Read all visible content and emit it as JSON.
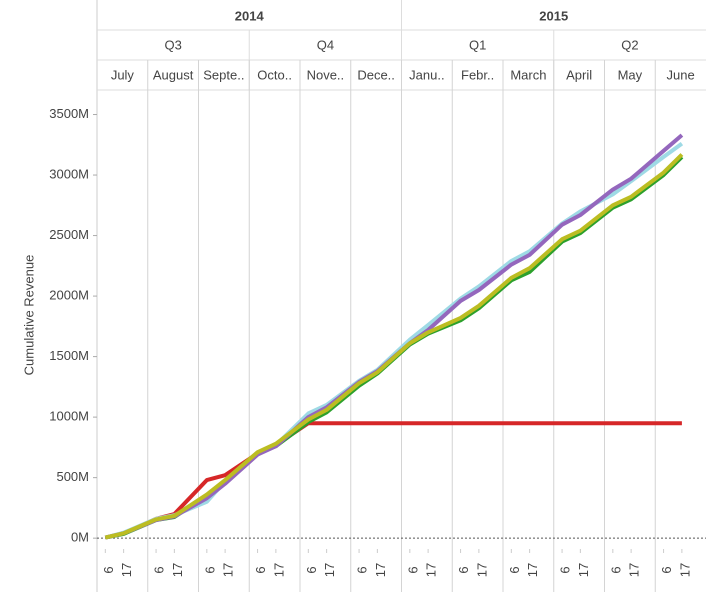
{
  "chart_data": {
    "type": "line",
    "y_label": "Cumulative Revenue",
    "years": [
      "2014",
      "2015"
    ],
    "quarters": [
      "Q3",
      "Q4",
      "Q1",
      "Q2"
    ],
    "months": [
      "July",
      "August",
      "Septe..",
      "Octo..",
      "Nove..",
      "Dece..",
      "Janu..",
      "Febr..",
      "March",
      "April",
      "May",
      "June"
    ],
    "day_ticks": [
      6,
      17
    ],
    "ylim": [
      -40,
      3620
    ],
    "yticks": [
      {
        "value": 0,
        "label": "0M"
      },
      {
        "value": 500,
        "label": "500M"
      },
      {
        "value": 1000,
        "label": "1000M"
      },
      {
        "value": 1500,
        "label": "1500M"
      },
      {
        "value": 2000,
        "label": "2000M"
      },
      {
        "value": 2500,
        "label": "2500M"
      },
      {
        "value": 3000,
        "label": "3000M"
      },
      {
        "value": 3500,
        "label": "3500M"
      }
    ],
    "series": [
      {
        "color": "#d62728",
        "values": [
          5,
          40,
          160,
          200,
          480,
          520,
          700,
          770,
          950,
          950,
          950,
          950,
          950,
          950,
          950,
          950,
          950,
          950,
          950,
          950,
          950,
          950,
          950,
          950
        ]
      },
      {
        "color": "#2ca02c",
        "values": [
          5,
          35,
          150,
          175,
          350,
          470,
          700,
          760,
          960,
          1040,
          1260,
          1360,
          1600,
          1690,
          1800,
          1900,
          2130,
          2200,
          2450,
          2520,
          2730,
          2800,
          3000,
          3150
        ]
      },
      {
        "color": "#9edae5",
        "values": [
          5,
          45,
          160,
          190,
          300,
          470,
          700,
          770,
          1030,
          1100,
          1300,
          1390,
          1640,
          1760,
          1980,
          2080,
          2290,
          2370,
          2600,
          2700,
          2840,
          2950,
          3150,
          3260
        ]
      },
      {
        "color": "#9467bd",
        "values": [
          5,
          40,
          150,
          180,
          330,
          450,
          690,
          760,
          1000,
          1080,
          1290,
          1380,
          1610,
          1720,
          1960,
          2050,
          2260,
          2340,
          2590,
          2670,
          2880,
          2970,
          3200,
          3330
        ]
      },
      {
        "color": "#bcbd22",
        "values": [
          5,
          40,
          155,
          185,
          360,
          480,
          710,
          780,
          980,
          1060,
          1280,
          1370,
          1610,
          1700,
          1820,
          1920,
          2150,
          2230,
          2470,
          2540,
          2750,
          2820,
          3020,
          3170
        ]
      }
    ]
  }
}
